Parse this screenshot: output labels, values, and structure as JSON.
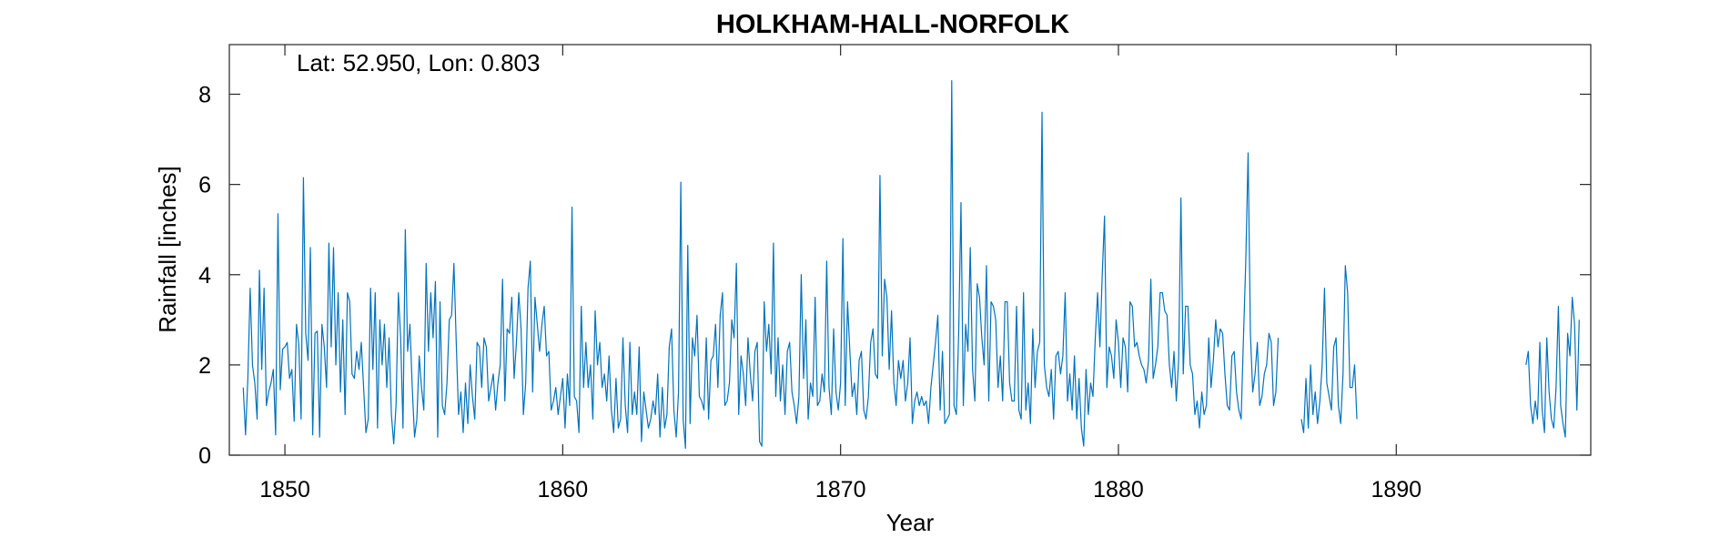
{
  "chart_data": {
    "type": "line",
    "title": "HOLKHAM-HALL-NORFOLK",
    "annotation": "Lat: 52.950, Lon: 0.803",
    "xlabel": "Year",
    "ylabel": "Rainfall [inches]",
    "xlim": [
      1848,
      1897
    ],
    "ylim": [
      0,
      9.1
    ],
    "xticks": [
      1850,
      1860,
      1870,
      1880,
      1890
    ],
    "yticks": [
      0,
      2,
      4,
      6,
      8
    ],
    "grid": false,
    "line_color": "#0072BD",
    "series": [
      {
        "start_year": 1848.5,
        "step": "monthly",
        "values": [
          1.5,
          0.45,
          1.7,
          3.7,
          2.0,
          1.6,
          0.8,
          4.1,
          1.9,
          3.7,
          1.1,
          1.4,
          1.6,
          1.9,
          0.45,
          5.35,
          1.45,
          2.35,
          2.4,
          2.5,
          1.7,
          1.9,
          0.75,
          2.9,
          2.45,
          0.8,
          6.15,
          2.7,
          2.1,
          4.6,
          0.45,
          2.7,
          2.75,
          0.4,
          2.9,
          2.4,
          1.5,
          4.7,
          2.4,
          4.6,
          2.0,
          3.6,
          1.4,
          3.0,
          0.9,
          3.6,
          3.4,
          1.8,
          1.7,
          2.3,
          1.9,
          2.5,
          1.5,
          0.5,
          0.8,
          3.7,
          1.9,
          3.6,
          0.6,
          3.0,
          2.0,
          2.9,
          1.5,
          2.6,
          0.9,
          0.25,
          1.1,
          3.6,
          2.6,
          0.6,
          5.0,
          2.3,
          2.9,
          1.5,
          0.4,
          0.8,
          2.2,
          1.5,
          1.0,
          4.25,
          2.3,
          3.6,
          2.6,
          3.85,
          0.4,
          3.4,
          1.1,
          0.9,
          1.6,
          3.0,
          3.1,
          4.25,
          2.5,
          0.9,
          1.4,
          0.5,
          1.6,
          0.7,
          2.0,
          1.3,
          0.8,
          2.5,
          2.4,
          1.5,
          2.6,
          2.4,
          1.2,
          1.5,
          1.8,
          1.0,
          1.6,
          2.0,
          3.9,
          1.2,
          2.8,
          2.7,
          3.5,
          1.7,
          2.5,
          3.6,
          2.8,
          0.9,
          1.6,
          3.7,
          4.3,
          1.4,
          3.5,
          2.9,
          2.3,
          2.9,
          3.3,
          2.2,
          2.3,
          1.0,
          1.2,
          1.5,
          0.9,
          1.3,
          1.7,
          0.6,
          1.8,
          1.1,
          5.5,
          1.3,
          1.2,
          0.5,
          3.3,
          1.5,
          2.5,
          1.5,
          2.0,
          0.8,
          3.2,
          2.0,
          2.5,
          1.5,
          1.8,
          1.2,
          2.2,
          1.0,
          0.5,
          1.7,
          0.6,
          0.8,
          2.6,
          1.1,
          0.5,
          2.5,
          0.9,
          1.4,
          0.9,
          2.4,
          0.3,
          1.4,
          1.0,
          0.6,
          0.8,
          1.2,
          0.9,
          1.8,
          0.4,
          1.5,
          0.6,
          0.9,
          2.4,
          2.8,
          1.0,
          0.4,
          1.4,
          6.05,
          0.8,
          0.15,
          4.65,
          0.7,
          2.6,
          2.2,
          3.1,
          1.3,
          1.2,
          1.0,
          2.6,
          0.8,
          2.1,
          2.2,
          2.9,
          1.5,
          3.1,
          3.6,
          1.1,
          1.2,
          1.6,
          3.0,
          2.6,
          4.25,
          0.9,
          2.2,
          1.8,
          1.1,
          2.6,
          1.8,
          1.2,
          2.3,
          2.5,
          0.3,
          0.2,
          3.4,
          2.3,
          2.9,
          1.8,
          4.7,
          1.3,
          2.6,
          1.2,
          2.0,
          0.9,
          2.3,
          2.5,
          1.4,
          1.1,
          0.7,
          1.3,
          4.0,
          1.7,
          3.0,
          0.8,
          1.6,
          1.3,
          3.5,
          1.1,
          1.2,
          1.8,
          1.4,
          4.3,
          1.5,
          0.9,
          2.8,
          1.4,
          1.0,
          1.6,
          4.8,
          1.1,
          3.4,
          2.3,
          1.3,
          1.6,
          0.9,
          2.1,
          2.3,
          1.0,
          0.8,
          1.3,
          2.5,
          2.8,
          1.8,
          1.7,
          6.2,
          2.2,
          3.9,
          3.5,
          1.9,
          3.2,
          1.6,
          1.1,
          2.1,
          1.7,
          2.1,
          1.2,
          1.6,
          2.6,
          0.7,
          1.2,
          1.4,
          1.1,
          1.3,
          1.1,
          1.2,
          0.7,
          1.5,
          2.0,
          2.5,
          3.1,
          1.0,
          2.3,
          0.7,
          0.8,
          0.9,
          8.3,
          1.1,
          0.9,
          2.7,
          5.6,
          1.1,
          2.9,
          2.3,
          4.6,
          1.9,
          1.2,
          3.8,
          3.5,
          2.6,
          2.0,
          4.2,
          1.2,
          3.4,
          3.3,
          3.0,
          1.5,
          2.2,
          1.2,
          3.4,
          3.4,
          1.6,
          1.2,
          1.2,
          3.3,
          1.0,
          0.8,
          3.6,
          1.0,
          1.6,
          0.7,
          2.8,
          1.5,
          2.3,
          2.5,
          7.6,
          2.0,
          1.5,
          1.3,
          1.9,
          0.8,
          2.2,
          2.3,
          1.8,
          2.2,
          3.6,
          1.2,
          1.8,
          1.0,
          2.2,
          0.8,
          1.7,
          0.6,
          0.2,
          1.9,
          0.9,
          1.6,
          1.3,
          2.6,
          3.6,
          2.4,
          4.0,
          5.3,
          1.5,
          2.4,
          2.2,
          1.7,
          3.0,
          2.5,
          1.5,
          2.6,
          2.4,
          1.4,
          3.4,
          3.3,
          2.4,
          2.5,
          2.2,
          2.0,
          1.9,
          1.6,
          2.1,
          3.9,
          1.7,
          2.0,
          2.4,
          3.6,
          3.6,
          3.2,
          3.1,
          2.0,
          1.5,
          2.3,
          1.2,
          2.1,
          5.7,
          1.8,
          3.3,
          3.3,
          2.0,
          1.8,
          0.9,
          1.2,
          0.6,
          1.4,
          0.9,
          1.1,
          2.6,
          1.5,
          2.1,
          3.0,
          2.4,
          2.8,
          2.7,
          1.8,
          1.1,
          1.0,
          2.2,
          2.3,
          1.4,
          1.0,
          0.8,
          2.6,
          4.3,
          6.7,
          2.7,
          1.4,
          1.8,
          2.5,
          1.1,
          1.3,
          1.8,
          2.0,
          2.7,
          2.5,
          1.1,
          1.4,
          2.6
        ]
      },
      {
        "start_year": 1886.583,
        "step": "monthly",
        "values": [
          0.8,
          0.5,
          1.7,
          0.6,
          2.0,
          0.9,
          1.4,
          0.7,
          1.2,
          2.0,
          3.7,
          1.6,
          1.3,
          1.0,
          2.4,
          2.6,
          1.1,
          0.7,
          1.8,
          4.2,
          3.6,
          1.5,
          1.5,
          2.0,
          0.8
        ]
      },
      {
        "start_year": 1894.667,
        "step": "monthly",
        "values": [
          2.0,
          2.3,
          1.1,
          0.7,
          1.2,
          0.8,
          2.5,
          1.0,
          0.5,
          2.6,
          1.4,
          0.8,
          0.6,
          1.5,
          3.3,
          1.1,
          0.7,
          0.4,
          2.7,
          2.2,
          3.5,
          2.9,
          1.0,
          3.0
        ]
      }
    ]
  }
}
